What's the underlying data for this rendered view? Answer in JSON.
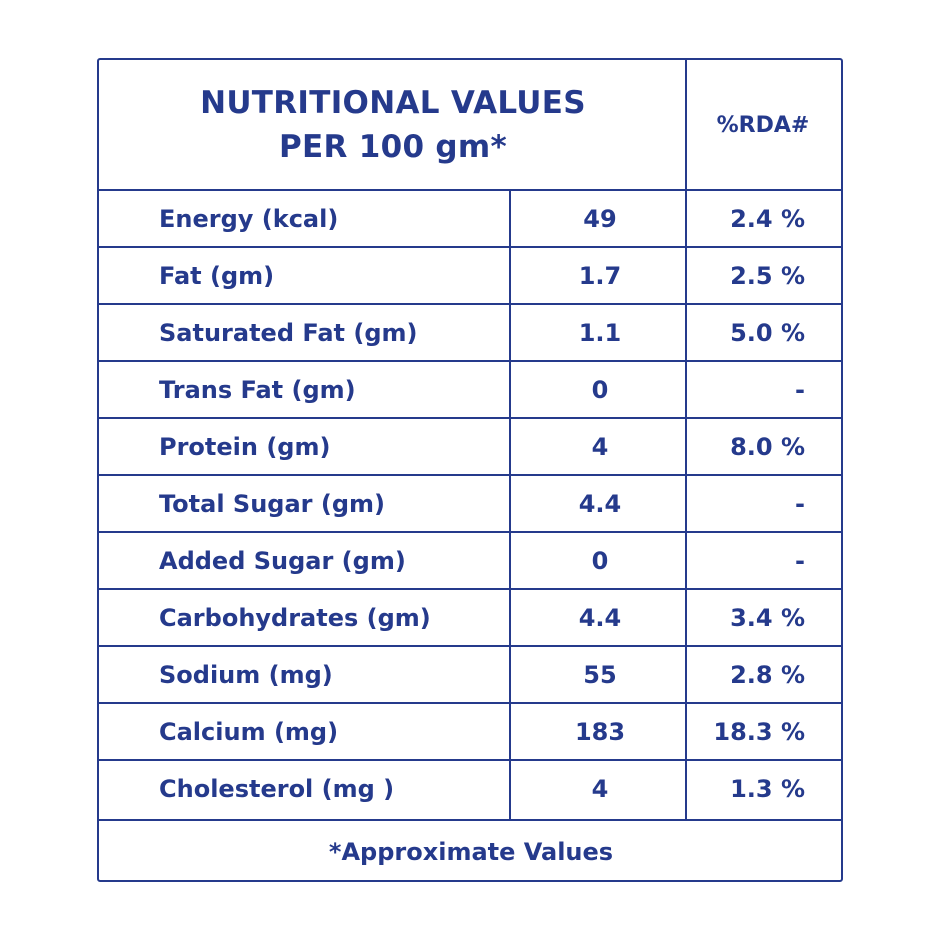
{
  "header": {
    "title_line1": "NUTRITIONAL VALUES",
    "title_line2": "PER 100 gm*",
    "rda_label": "%RDA#"
  },
  "rows": [
    {
      "name": "Energy (kcal)",
      "value": "49",
      "rda": "2.4 %"
    },
    {
      "name": "Fat (gm)",
      "value": "1.7",
      "rda": "2.5 %"
    },
    {
      "name": "Saturated Fat (gm)",
      "value": "1.1",
      "rda": "5.0 %"
    },
    {
      "name": "Trans Fat (gm)",
      "value": "0",
      "rda": "-"
    },
    {
      "name": "Protein (gm)",
      "value": "4",
      "rda": "8.0 %"
    },
    {
      "name": "Total Sugar (gm)",
      "value": "4.4",
      "rda": "-"
    },
    {
      "name": "Added Sugar (gm)",
      "value": "0",
      "rda": "-"
    },
    {
      "name": "Carbohydrates (gm)",
      "value": "4.4",
      "rda": "3.4 %"
    },
    {
      "name": "Sodium (mg)",
      "value": "55",
      "rda": "2.8 %"
    },
    {
      "name": "Calcium (mg)",
      "value": "183",
      "rda": "18.3 %"
    },
    {
      "name": "Cholesterol (mg )",
      "value": "4",
      "rda": "1.3 %"
    }
  ],
  "footer": {
    "note": "*Approximate Values"
  },
  "colors": {
    "ink": "#253a8c",
    "background": "#ffffff"
  }
}
